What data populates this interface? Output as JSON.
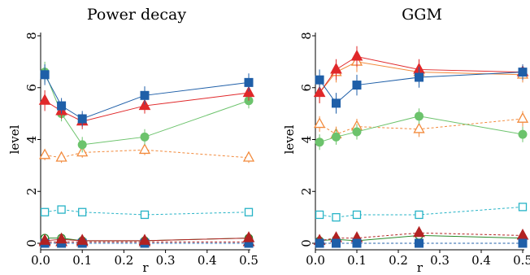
{
  "chart_data": [
    {
      "type": "line",
      "title": "Power decay",
      "xlabel": "r",
      "ylabel": "level",
      "xlim": [
        0,
        0.5
      ],
      "ylim": [
        0,
        8
      ],
      "xticks": [
        "0.0",
        "0.1",
        "0.2",
        "0.3",
        "0.4",
        "0.5"
      ],
      "yticks": [
        "0",
        "2",
        "4",
        "6",
        "8"
      ],
      "grid": false,
      "series": [
        {
          "marker": "square-open",
          "line": "dashed",
          "color": "#26b3c6",
          "x": [
            0.01,
            0.05,
            0.1,
            0.25,
            0.5
          ],
          "values": [
            1.2,
            1.3,
            1.2,
            1.1,
            1.2
          ],
          "err": [
            0.1,
            0.1,
            0.1,
            0.1,
            0.1
          ]
        },
        {
          "marker": "triangle-open",
          "line": "dashed",
          "color": "#f28a3c",
          "x": [
            0.01,
            0.05,
            0.1,
            0.25,
            0.5
          ],
          "values": [
            3.4,
            3.3,
            3.5,
            3.6,
            3.3
          ],
          "err": [
            0.2,
            0.2,
            0.2,
            0.2,
            0.2
          ]
        },
        {
          "marker": "circle-open",
          "line": "solid",
          "color": "#2a8a2a",
          "x": [
            0.01,
            0.05,
            0.1,
            0.25,
            0.5
          ],
          "values": [
            0.2,
            0.2,
            0.1,
            0.1,
            0.2
          ],
          "err": [
            0.05,
            0.05,
            0.05,
            0.05,
            0.05
          ]
        },
        {
          "marker": "triangle",
          "line": "dashed",
          "color": "#b22222",
          "x": [
            0.01,
            0.05,
            0.1,
            0.25,
            0.5
          ],
          "values": [
            0.05,
            0.05,
            0.05,
            0.05,
            0.05
          ],
          "err": [
            0.03,
            0.03,
            0.03,
            0.03,
            0.03
          ]
        },
        {
          "marker": "square",
          "line": "dashed",
          "color": "#1f5fa8",
          "x": [
            0.01,
            0.05,
            0.1,
            0.25,
            0.5
          ],
          "values": [
            0,
            0,
            0,
            0,
            0
          ],
          "err": [
            0.02,
            0.02,
            0.02,
            0.02,
            0.02
          ]
        },
        {
          "marker": "triangle",
          "line": "solid",
          "color": "#b22222",
          "x": [
            0.01,
            0.05,
            0.1,
            0.25,
            0.5
          ],
          "values": [
            0.1,
            0.15,
            0.1,
            0.1,
            0.2
          ],
          "err": [
            0.05,
            0.05,
            0.05,
            0.05,
            0.05
          ]
        },
        {
          "marker": "circle",
          "line": "solid",
          "color": "#6cc36c",
          "x": [
            0.01,
            0.05,
            0.1,
            0.25,
            0.5
          ],
          "values": [
            6.6,
            5.0,
            3.8,
            4.1,
            5.5
          ],
          "err": [
            0.4,
            0.3,
            0.3,
            0.3,
            0.3
          ]
        },
        {
          "marker": "triangle",
          "line": "solid",
          "color": "#e0282a",
          "x": [
            0.01,
            0.05,
            0.1,
            0.25,
            0.5
          ],
          "values": [
            5.5,
            5.1,
            4.7,
            5.3,
            5.8
          ],
          "err": [
            0.4,
            0.3,
            0.3,
            0.3,
            0.3
          ]
        },
        {
          "marker": "square",
          "line": "solid",
          "color": "#1f5fa8",
          "x": [
            0.01,
            0.05,
            0.1,
            0.25,
            0.5
          ],
          "values": [
            6.5,
            5.3,
            4.8,
            5.7,
            6.2
          ],
          "err": [
            0.4,
            0.3,
            0.3,
            0.35,
            0.35
          ]
        }
      ]
    },
    {
      "type": "line",
      "title": "GGM",
      "xlabel": "r",
      "ylabel": "level",
      "xlim": [
        0,
        0.5
      ],
      "ylim": [
        0,
        8
      ],
      "xticks": [
        "0.0",
        "0.1",
        "0.2",
        "0.3",
        "0.4",
        "0.5"
      ],
      "yticks": [
        "0",
        "2",
        "4",
        "6",
        "8"
      ],
      "grid": false,
      "series": [
        {
          "marker": "square-open",
          "line": "dashed",
          "color": "#26b3c6",
          "x": [
            0.01,
            0.05,
            0.1,
            0.25,
            0.5
          ],
          "values": [
            1.1,
            1.0,
            1.1,
            1.1,
            1.4
          ],
          "err": [
            0.1,
            0.1,
            0.1,
            0.1,
            0.1
          ]
        },
        {
          "marker": "triangle-open",
          "line": "dashed",
          "color": "#f28a3c",
          "x": [
            0.01,
            0.05,
            0.1,
            0.25,
            0.5
          ],
          "values": [
            4.6,
            4.2,
            4.5,
            4.4,
            4.8
          ],
          "err": [
            0.3,
            0.3,
            0.3,
            0.3,
            0.3
          ]
        },
        {
          "marker": "circle-open",
          "line": "solid",
          "color": "#2a8a2a",
          "x": [
            0.01,
            0.05,
            0.1,
            0.25,
            0.5
          ],
          "values": [
            0.1,
            0.15,
            0.1,
            0.3,
            0.2
          ],
          "err": [
            0.05,
            0.05,
            0.05,
            0.05,
            0.05
          ]
        },
        {
          "marker": "triangle",
          "line": "dashed",
          "color": "#b22222",
          "x": [
            0.01,
            0.05,
            0.1,
            0.25,
            0.5
          ],
          "values": [
            0.1,
            0.2,
            0.2,
            0.4,
            0.3
          ],
          "err": [
            0.05,
            0.05,
            0.05,
            0.05,
            0.05
          ]
        },
        {
          "marker": "square",
          "line": "dashed",
          "color": "#1f5fa8",
          "x": [
            0.01,
            0.05,
            0.1,
            0.25,
            0.5
          ],
          "values": [
            0,
            0,
            0,
            0,
            0
          ],
          "err": [
            0.02,
            0.02,
            0.02,
            0.02,
            0.02
          ]
        },
        {
          "marker": "triangle-open",
          "line": "solid",
          "color": "#f28a3c",
          "x": [
            0.01,
            0.05,
            0.1,
            0.25,
            0.5
          ],
          "values": [
            5.8,
            6.6,
            7.0,
            6.6,
            6.5
          ],
          "err": [
            0.4,
            0.4,
            0.4,
            0.4,
            0.3
          ]
        },
        {
          "marker": "circle",
          "line": "solid",
          "color": "#6cc36c",
          "x": [
            0.01,
            0.05,
            0.1,
            0.25,
            0.5
          ],
          "values": [
            3.9,
            4.1,
            4.3,
            4.9,
            4.2
          ],
          "err": [
            0.3,
            0.3,
            0.3,
            0.3,
            0.3
          ]
        },
        {
          "marker": "triangle",
          "line": "solid",
          "color": "#e0282a",
          "x": [
            0.01,
            0.05,
            0.1,
            0.25,
            0.5
          ],
          "values": [
            5.8,
            6.7,
            7.2,
            6.7,
            6.6
          ],
          "err": [
            0.4,
            0.4,
            0.4,
            0.4,
            0.3
          ]
        },
        {
          "marker": "square",
          "line": "solid",
          "color": "#1f5fa8",
          "x": [
            0.01,
            0.05,
            0.1,
            0.25,
            0.5
          ],
          "values": [
            6.3,
            5.4,
            6.1,
            6.4,
            6.6
          ],
          "err": [
            0.4,
            0.4,
            0.4,
            0.4,
            0.3
          ]
        }
      ]
    }
  ]
}
